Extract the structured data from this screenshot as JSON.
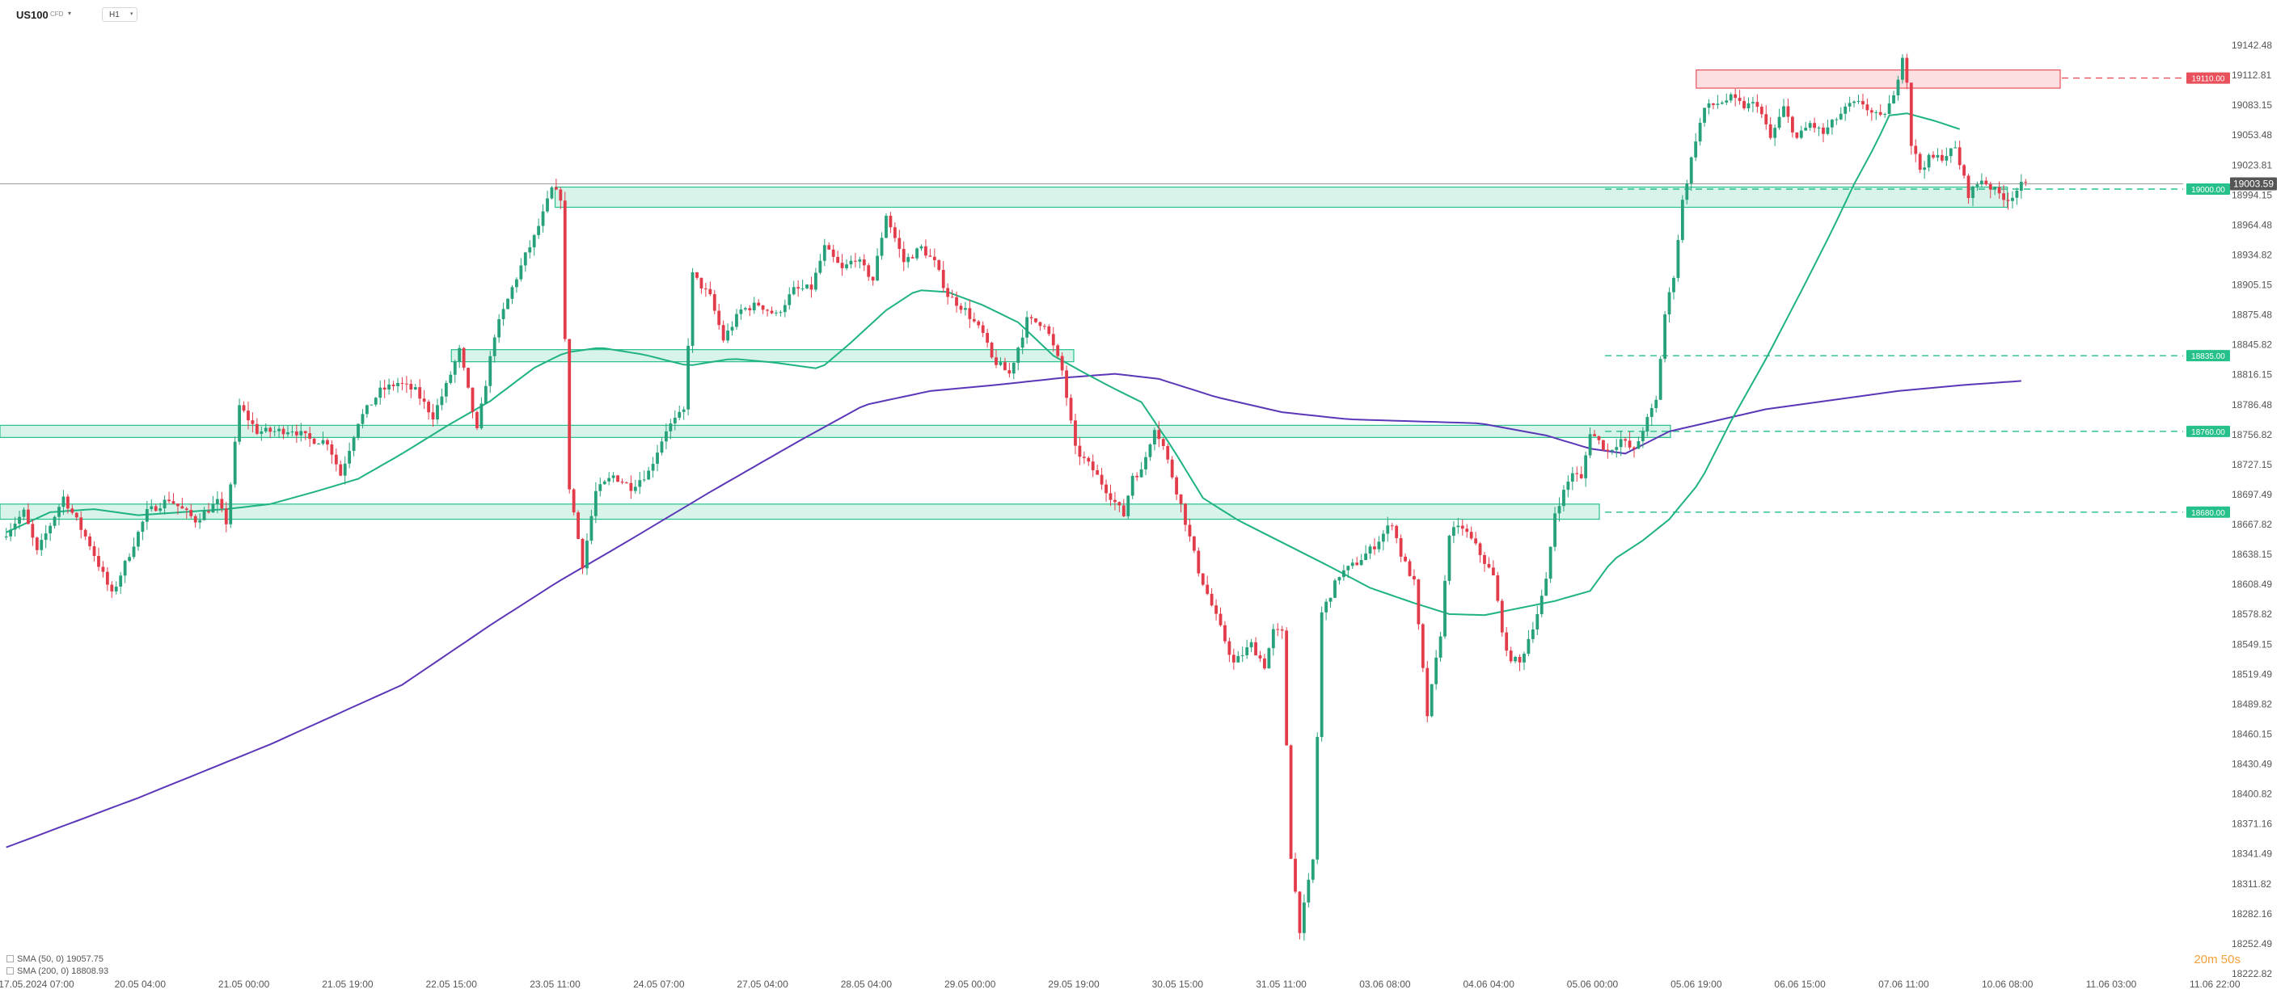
{
  "header": {
    "symbol": "US100",
    "symbol_type": "CFD",
    "timeframe": "H1",
    "dropdown_icon": "chevron-down-icon"
  },
  "colors": {
    "bull": "#26a17b",
    "bear": "#e23b4a",
    "zone_green": "#26c08a",
    "zone_red": "#e8505b",
    "sma50": "#1fb283",
    "sma200": "#5b37b8",
    "price_line": "#9a9a9a"
  },
  "indicators": [
    {
      "label": "SMA (50, 0) 19057.75"
    },
    {
      "label": "SMA (200, 0) 18808.93"
    }
  ],
  "countdown": "20m 50s",
  "chart_data": {
    "type": "candlestick",
    "instrument": "US100",
    "timeframe": "H1",
    "ylim": [
      18222.82,
      19172.0
    ],
    "y_ticks": [
      "19142.48",
      "19112.81",
      "19083.15",
      "19053.48",
      "19023.81",
      "18994.15",
      "18964.48",
      "18934.82",
      "18905.15",
      "18875.48",
      "18845.82",
      "18816.15",
      "18786.48",
      "18756.82",
      "18727.15",
      "18697.49",
      "18667.82",
      "18638.15",
      "18608.49",
      "18578.82",
      "18549.15",
      "18519.49",
      "18489.82",
      "18460.15",
      "18430.49",
      "18400.82",
      "18371.16",
      "18341.49",
      "18311.82",
      "18282.16",
      "18252.49",
      "18222.82"
    ],
    "x_ticks": [
      "17.05.2024 07:00",
      "20.05 04:00",
      "21.05 00:00",
      "21.05 19:00",
      "22.05 15:00",
      "23.05 11:00",
      "24.05 07:00",
      "27.05 04:00",
      "28.05 04:00",
      "29.05 00:00",
      "29.05 19:00",
      "30.05 15:00",
      "31.05 11:00",
      "03.06 08:00",
      "04.06 04:00",
      "05.06 00:00",
      "05.06 19:00",
      "06.06 15:00",
      "07.06 11:00",
      "10.06 08:00",
      "11.06 03:00",
      "11.06 22:00"
    ],
    "levels": [
      {
        "label": "19110.00",
        "value": 19110.0,
        "color": "red"
      },
      {
        "label": "19000.00",
        "value": 19000.0,
        "color": "green"
      },
      {
        "label": "18835.00",
        "value": 18835.0,
        "color": "green"
      },
      {
        "label": "18760.00",
        "value": 18760.0,
        "color": "green"
      },
      {
        "label": "18680.00",
        "value": 18680.0,
        "color": "green"
      }
    ],
    "current_price": {
      "label": "19003.59",
      "value": 19003.59
    },
    "zones": [
      {
        "color": "red",
        "from_x": "05.06 19:00",
        "to_x": "10.06 08:00",
        "lo": 19100,
        "hi": 19118
      },
      {
        "color": "green",
        "from_x": "23.05 11:00",
        "to_x": "10.06 08:00",
        "lo": 18982,
        "hi": 19002
      },
      {
        "color": "green",
        "from_x": "22.05 15:00",
        "to_x": "29.05 19:00",
        "lo": 18829,
        "hi": 18841
      },
      {
        "color": "green",
        "from_x": "17.05.2024 07:00",
        "to_x": "05.06 19:00",
        "lo": 18754,
        "hi": 18766
      },
      {
        "color": "green",
        "from_x": "17.05.2024 07:00",
        "to_x": "05.06 00:00",
        "lo": 18673,
        "hi": 18688
      }
    ],
    "path": [
      [
        0,
        18655
      ],
      [
        5,
        18680
      ],
      [
        8,
        18640
      ],
      [
        14,
        18695
      ],
      [
        20,
        18648
      ],
      [
        25,
        18598
      ],
      [
        33,
        18680
      ],
      [
        38,
        18693
      ],
      [
        44,
        18672
      ],
      [
        49,
        18690
      ],
      [
        51,
        18670
      ],
      [
        54,
        18785
      ],
      [
        58,
        18760
      ],
      [
        62,
        18760
      ],
      [
        66,
        18762
      ],
      [
        70,
        18752
      ],
      [
        74,
        18750
      ],
      [
        77,
        18717
      ],
      [
        81,
        18770
      ],
      [
        86,
        18800
      ],
      [
        90,
        18808
      ],
      [
        94,
        18800
      ],
      [
        98,
        18775
      ],
      [
        101,
        18805
      ],
      [
        104,
        18840
      ],
      [
        108,
        18760
      ],
      [
        112,
        18856
      ],
      [
        116,
        18902
      ],
      [
        119,
        18934
      ],
      [
        121,
        18952
      ],
      [
        123,
        18975
      ],
      [
        125,
        19000
      ],
      [
        127,
        18992
      ],
      [
        129,
        18705
      ],
      [
        132,
        18628
      ],
      [
        135,
        18700
      ],
      [
        139,
        18716
      ],
      [
        143,
        18705
      ],
      [
        147,
        18720
      ],
      [
        151,
        18762
      ],
      [
        155,
        18780
      ],
      [
        157,
        18915
      ],
      [
        161,
        18893
      ],
      [
        164,
        18851
      ],
      [
        168,
        18880
      ],
      [
        172,
        18886
      ],
      [
        176,
        18875
      ],
      [
        180,
        18900
      ],
      [
        184,
        18902
      ],
      [
        187,
        18942
      ],
      [
        191,
        18920
      ],
      [
        194,
        18932
      ],
      [
        198,
        18910
      ],
      [
        201,
        18975
      ],
      [
        205,
        18928
      ],
      [
        209,
        18942
      ],
      [
        212,
        18927
      ],
      [
        215,
        18895
      ],
      [
        219,
        18880
      ],
      [
        223,
        18856
      ],
      [
        225,
        18832
      ],
      [
        229,
        18817
      ],
      [
        233,
        18870
      ],
      [
        237,
        18867
      ],
      [
        241,
        18820
      ],
      [
        244,
        18742
      ],
      [
        248,
        18722
      ],
      [
        252,
        18696
      ],
      [
        255,
        18677
      ],
      [
        257,
        18717
      ],
      [
        259,
        18720
      ],
      [
        262,
        18765
      ],
      [
        264,
        18745
      ],
      [
        268,
        18687
      ],
      [
        272,
        18622
      ],
      [
        276,
        18576
      ],
      [
        280,
        18530
      ],
      [
        284,
        18549
      ],
      [
        287,
        18528
      ],
      [
        289,
        18562
      ],
      [
        291,
        18560
      ],
      [
        293,
        18340
      ],
      [
        295,
        18267
      ],
      [
        298,
        18335
      ],
      [
        300,
        18580
      ],
      [
        304,
        18618
      ],
      [
        308,
        18630
      ],
      [
        312,
        18647
      ],
      [
        316,
        18670
      ],
      [
        318,
        18638
      ],
      [
        321,
        18610
      ],
      [
        324,
        18479
      ],
      [
        327,
        18560
      ],
      [
        329,
        18660
      ],
      [
        332,
        18665
      ],
      [
        335,
        18646
      ],
      [
        339,
        18616
      ],
      [
        342,
        18539
      ],
      [
        345,
        18530
      ],
      [
        349,
        18580
      ],
      [
        351,
        18611
      ],
      [
        353,
        18680
      ],
      [
        357,
        18720
      ],
      [
        359,
        18712
      ],
      [
        361,
        18760
      ],
      [
        365,
        18740
      ],
      [
        368,
        18752
      ],
      [
        371,
        18740
      ],
      [
        373,
        18762
      ],
      [
        376,
        18790
      ],
      [
        378,
        18876
      ],
      [
        380,
        18915
      ],
      [
        382,
        18988
      ],
      [
        385,
        19050
      ],
      [
        387,
        19080
      ],
      [
        390,
        19085
      ],
      [
        393,
        19090
      ],
      [
        396,
        19082
      ],
      [
        399,
        19085
      ],
      [
        402,
        19050
      ],
      [
        405,
        19080
      ],
      [
        408,
        19050
      ],
      [
        411,
        19065
      ],
      [
        414,
        19055
      ],
      [
        417,
        19070
      ],
      [
        420,
        19083
      ],
      [
        423,
        19085
      ],
      [
        425,
        19075
      ],
      [
        427,
        19070
      ],
      [
        430,
        19090
      ],
      [
        432,
        19134
      ],
      [
        433,
        19107
      ],
      [
        434,
        19045
      ],
      [
        436,
        19020
      ],
      [
        438,
        19030
      ],
      [
        441,
        19032
      ],
      [
        444,
        19040
      ],
      [
        447,
        18995
      ],
      [
        450,
        19010
      ],
      [
        453,
        18998
      ],
      [
        456,
        18990
      ],
      [
        459,
        19003.59
      ]
    ],
    "sma50": [
      [
        0,
        18660
      ],
      [
        10,
        18680
      ],
      [
        20,
        18683
      ],
      [
        30,
        18677
      ],
      [
        40,
        18680
      ],
      [
        50,
        18683
      ],
      [
        60,
        18688
      ],
      [
        70,
        18700
      ],
      [
        80,
        18713
      ],
      [
        90,
        18738
      ],
      [
        100,
        18765
      ],
      [
        110,
        18790
      ],
      [
        120,
        18823
      ],
      [
        127,
        18838
      ],
      [
        135,
        18843
      ],
      [
        145,
        18836
      ],
      [
        155,
        18825
      ],
      [
        165,
        18832
      ],
      [
        175,
        18828
      ],
      [
        185,
        18822
      ],
      [
        192,
        18848
      ],
      [
        200,
        18880
      ],
      [
        207,
        18900
      ],
      [
        214,
        18898
      ],
      [
        222,
        18885
      ],
      [
        230,
        18868
      ],
      [
        238,
        18835
      ],
      [
        245,
        18818
      ],
      [
        252,
        18802
      ],
      [
        258,
        18789
      ],
      [
        265,
        18744
      ],
      [
        272,
        18694
      ],
      [
        280,
        18672
      ],
      [
        290,
        18650
      ],
      [
        300,
        18628
      ],
      [
        310,
        18605
      ],
      [
        320,
        18590
      ],
      [
        328,
        18579
      ],
      [
        336,
        18578
      ],
      [
        344,
        18585
      ],
      [
        352,
        18592
      ],
      [
        360,
        18602
      ],
      [
        365,
        18632
      ],
      [
        372,
        18652
      ],
      [
        378,
        18673
      ],
      [
        385,
        18710
      ],
      [
        392,
        18770
      ],
      [
        400,
        18832
      ],
      [
        408,
        18899
      ],
      [
        415,
        18959
      ],
      [
        420,
        19005
      ],
      [
        425,
        19045
      ],
      [
        428,
        19073
      ],
      [
        432,
        19075
      ],
      [
        438,
        19068
      ],
      [
        445,
        19058
      ]
    ],
    "sma200": [
      [
        0,
        18348
      ],
      [
        30,
        18397
      ],
      [
        60,
        18450
      ],
      [
        90,
        18509
      ],
      [
        110,
        18568
      ],
      [
        125,
        18610
      ],
      [
        140,
        18648
      ],
      [
        160,
        18700
      ],
      [
        180,
        18750
      ],
      [
        195,
        18786
      ],
      [
        210,
        18800
      ],
      [
        225,
        18806
      ],
      [
        240,
        18813
      ],
      [
        252,
        18817
      ],
      [
        262,
        18812
      ],
      [
        275,
        18794
      ],
      [
        290,
        18779
      ],
      [
        305,
        18772
      ],
      [
        320,
        18770
      ],
      [
        335,
        18768
      ],
      [
        350,
        18756
      ],
      [
        360,
        18743
      ],
      [
        368,
        18738
      ],
      [
        378,
        18760
      ],
      [
        390,
        18772
      ],
      [
        400,
        18782
      ],
      [
        415,
        18791
      ],
      [
        430,
        18800
      ],
      [
        445,
        18806
      ],
      [
        458,
        18810
      ]
    ]
  }
}
